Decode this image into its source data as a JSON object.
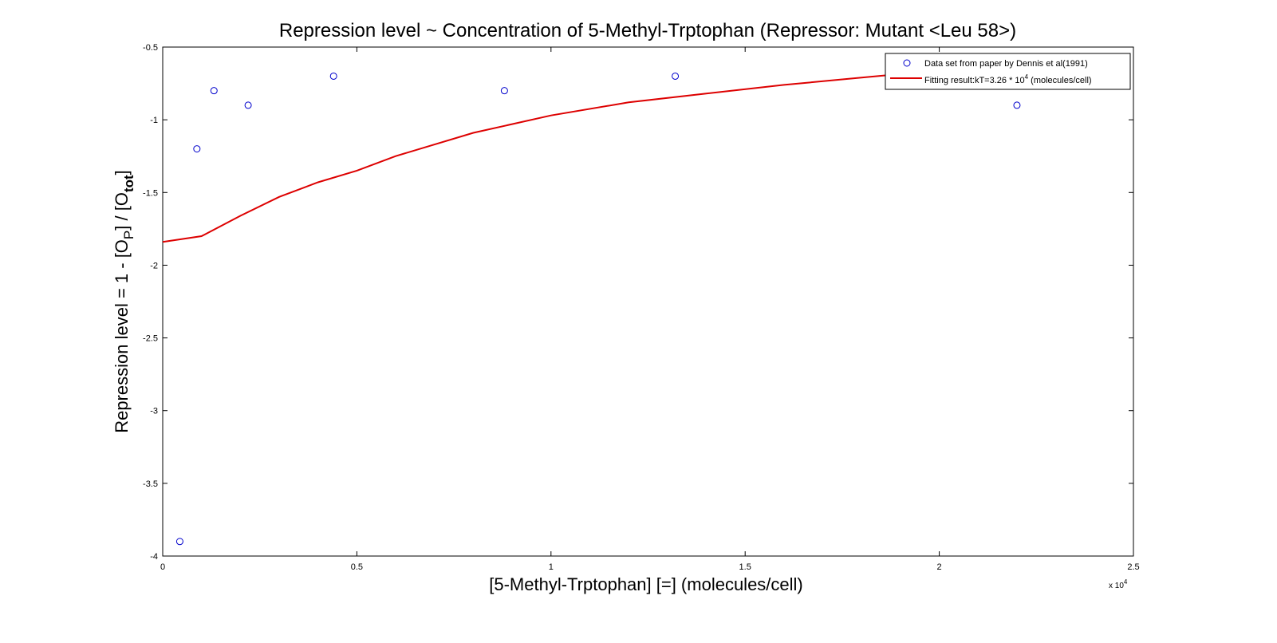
{
  "chart_data": {
    "type": "line",
    "title": "Repression level ~ Concentration of 5-Methyl-Trptophan (Repressor: Mutant <Leu 58>)",
    "xlabel": "[5-Methyl-Trptophan] [=] (molecules/cell)",
    "ylabel": {
      "main": "Repression level = 1 - [O",
      "sub1": "P",
      "mid": "] / [O",
      "sub2": "tot",
      "end": "]"
    },
    "x_exponent_label": "x 10",
    "x_exponent_power": "4",
    "xlim": [
      0,
      25000
    ],
    "ylim": [
      -4,
      -0.5
    ],
    "x_ticks": [
      0,
      5000,
      10000,
      15000,
      20000,
      25000
    ],
    "x_tick_labels": [
      "0",
      "0.5",
      "1",
      "1.5",
      "2",
      "2.5"
    ],
    "y_ticks": [
      -4,
      -3.5,
      -3,
      -2.5,
      -2,
      -1.5,
      -1,
      -0.5
    ],
    "y_tick_labels": [
      "-4",
      "-3.5",
      "-3",
      "-2.5",
      "-2",
      "-1.5",
      "-1",
      "-0.5"
    ],
    "grid": false,
    "legend_position": "top-right",
    "series": [
      {
        "name": "Data set from paper by Dennis et al(1991)",
        "kind": "scatter",
        "color": "#0000cc",
        "x": [
          440,
          880,
          1320,
          2200,
          4400,
          8800,
          13200,
          22000
        ],
        "y": [
          -3.9,
          -1.2,
          -0.8,
          -0.9,
          -0.7,
          -0.8,
          -0.7,
          -0.9
        ]
      },
      {
        "name": "Fitting result:kT=3.26 * 10",
        "name_power": "4",
        "name_suffix": " (molecules/cell)",
        "kind": "line",
        "color": "#dd0000",
        "x": [
          0,
          1000,
          2000,
          3000,
          4000,
          5000,
          6000,
          8000,
          10000,
          12000,
          14000,
          16000,
          18000,
          20000,
          22000
        ],
        "y": [
          -1.84,
          -1.8,
          -1.66,
          -1.53,
          -1.43,
          -1.35,
          -1.25,
          -1.09,
          -0.97,
          -0.88,
          -0.82,
          -0.76,
          -0.71,
          -0.66,
          -0.62
        ]
      }
    ]
  }
}
